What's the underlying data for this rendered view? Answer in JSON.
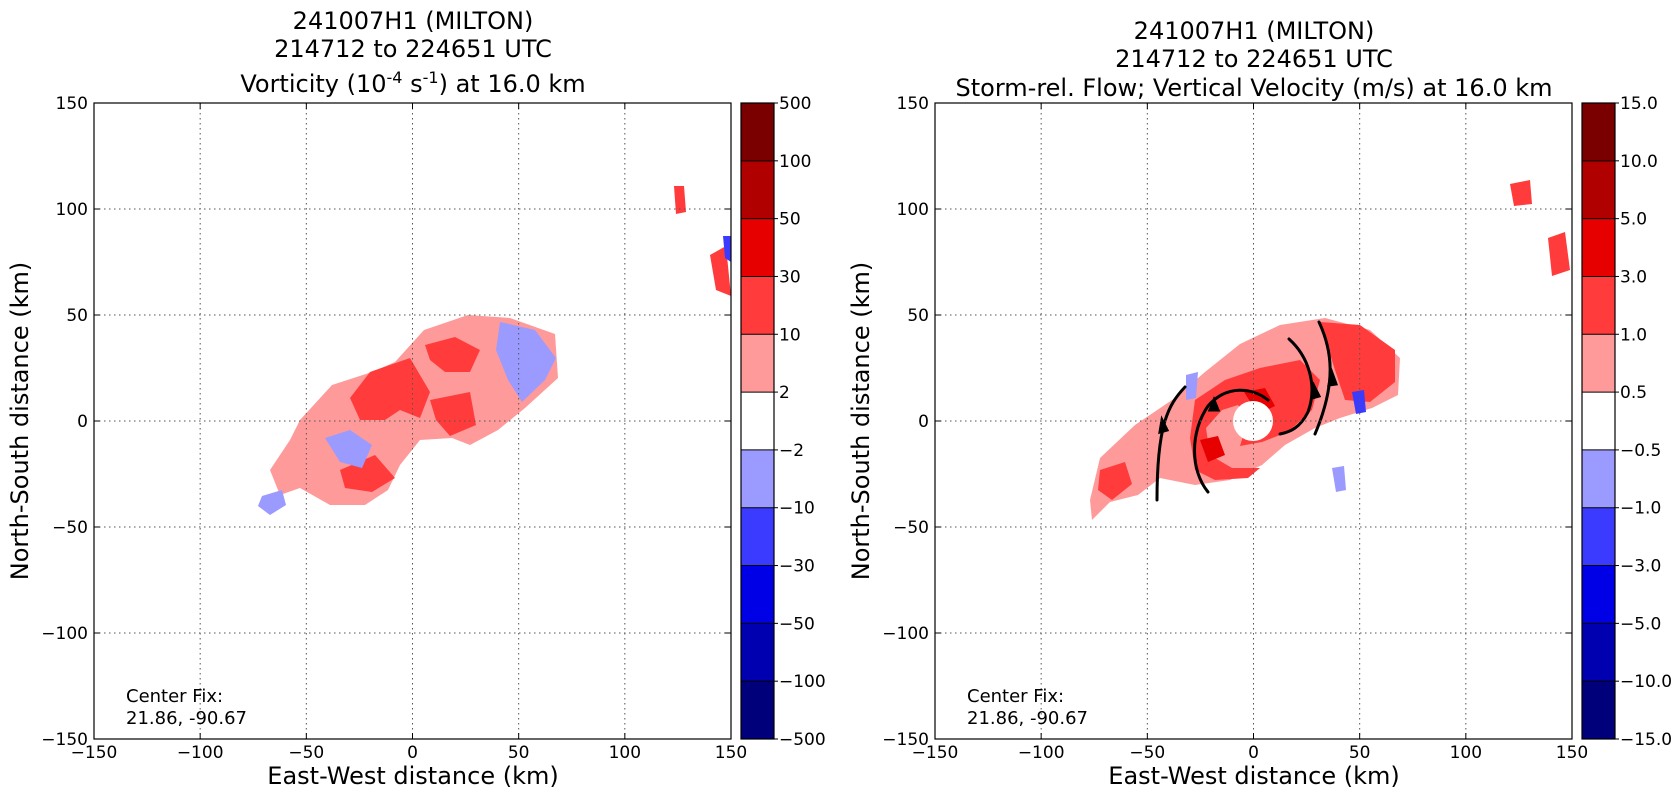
{
  "chart_data": [
    {
      "type": "heatmap",
      "title_lines": [
        "241007H1 (MILTON)",
        "214712 to 224651 UTC"
      ],
      "title_line3_prefix": "Vorticity (10",
      "title_line3_sup1": "-4",
      "title_line3_mid": " s",
      "title_line3_sup2": "-1",
      "title_line3_suffix": ") at 16.0 km",
      "xlabel": "East-West distance (km)",
      "ylabel": "North-South distance (km)",
      "xlim": [
        -150,
        150
      ],
      "ylim": [
        -150,
        150
      ],
      "xticks": [
        "−150",
        "−100",
        "−50",
        "0",
        "50",
        "100",
        "150"
      ],
      "yticks": [
        "150",
        "100",
        "50",
        "0",
        "−50",
        "−100",
        "−150"
      ],
      "grid": true,
      "center_fix_label": "Center Fix:",
      "center_fix_value": "21.86, -90.67",
      "colorbar_labels": [
        "500",
        "100",
        "50",
        "30",
        "10",
        "2",
        "−2",
        "−10",
        "−30",
        "−50",
        "−100",
        "−500"
      ],
      "colorbar_colors": [
        "#7a0000",
        "#b00000",
        "#e60000",
        "#ff3b3b",
        "#ff9a9a",
        "#ffffff",
        "#9a9aff",
        "#3b3bff",
        "#0000e6",
        "#0000b0",
        "#00007a"
      ]
    },
    {
      "type": "heatmap",
      "title_lines": [
        "241007H1 (MILTON)",
        "214712 to 224651 UTC",
        "Storm-rel. Flow; Vertical Velocity (m/s) at 16.0 km"
      ],
      "xlabel": "East-West distance (km)",
      "ylabel": "North-South distance (km)",
      "xlim": [
        -150,
        150
      ],
      "ylim": [
        -150,
        150
      ],
      "xticks": [
        "−150",
        "−100",
        "−50",
        "0",
        "50",
        "100",
        "150"
      ],
      "yticks": [
        "150",
        "100",
        "50",
        "0",
        "−50",
        "−100",
        "−150"
      ],
      "grid": true,
      "center_fix_label": "Center Fix:",
      "center_fix_value": "21.86, -90.67",
      "colorbar_labels": [
        "15.0",
        "10.0",
        "5.0",
        "3.0",
        "1.0",
        "0.5",
        "−0.5",
        "−1.0",
        "−3.0",
        "−5.0",
        "−10.0",
        "−15.0"
      ],
      "colorbar_colors": [
        "#7a0000",
        "#b00000",
        "#e60000",
        "#ff3b3b",
        "#ff9a9a",
        "#ffffff",
        "#9a9aff",
        "#3b3bff",
        "#0000e6",
        "#0000b0",
        "#00007a"
      ]
    }
  ]
}
